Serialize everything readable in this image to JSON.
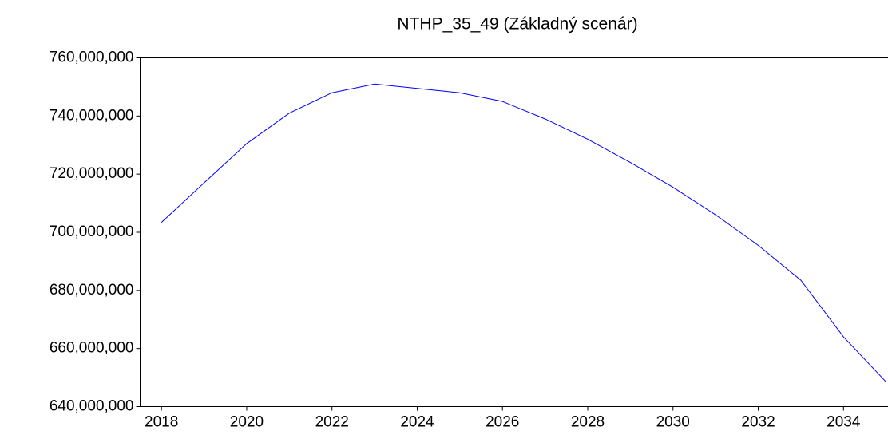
{
  "chart_data": {
    "type": "line",
    "title": "NTHP_35_49 (Základný scenár)",
    "x": [
      2018,
      2019,
      2020,
      2021,
      2022,
      2023,
      2024,
      2025,
      2026,
      2027,
      2028,
      2029,
      2030,
      2031,
      2032,
      2033,
      2034,
      2035
    ],
    "series": [
      {
        "name": "NTHP_35_49",
        "color": "#0000ff",
        "values": [
          703400000,
          717000000,
          730500000,
          741000000,
          748000000,
          751000000,
          749500000,
          748000000,
          745000000,
          739000000,
          732000000,
          724000000,
          715500000,
          706000000,
          695500000,
          683500000,
          664000000,
          648500000
        ]
      }
    ],
    "xlim": [
      2017.5,
      2035.1
    ],
    "xticks": [
      2018,
      2020,
      2022,
      2024,
      2026,
      2028,
      2030,
      2032,
      2034
    ],
    "ylim": [
      640000000,
      760000000
    ],
    "yticks": [
      {
        "value": 640000000,
        "label": "640,000,000"
      },
      {
        "value": 660000000,
        "label": "660,000,000"
      },
      {
        "value": 680000000,
        "label": "680,000,000"
      },
      {
        "value": 700000000,
        "label": "700,000,000"
      },
      {
        "value": 720000000,
        "label": "720,000,000"
      },
      {
        "value": 740000000,
        "label": "740,000,000"
      },
      {
        "value": 760000000,
        "label": "760,000,000"
      }
    ],
    "grid": false
  }
}
